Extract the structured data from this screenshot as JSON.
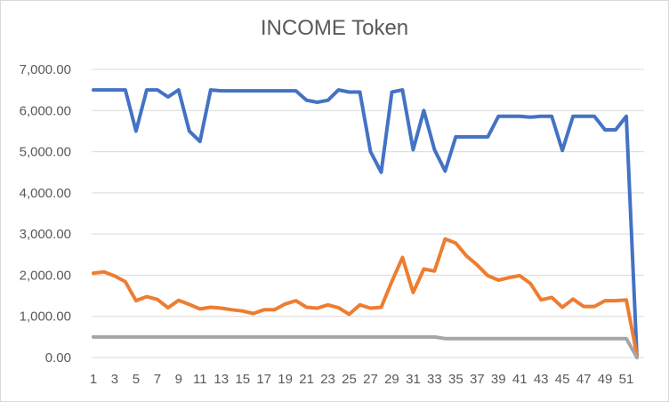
{
  "chart_data": {
    "type": "line",
    "title": "INCOME Token",
    "xlabel": "",
    "ylabel": "",
    "ylim": [
      0,
      7000
    ],
    "y_ticks": [
      "0.00",
      "1,000.00",
      "2,000.00",
      "3,000.00",
      "4,000.00",
      "5,000.00",
      "6,000.00",
      "7,000.00"
    ],
    "x": [
      1,
      2,
      3,
      4,
      5,
      6,
      7,
      8,
      9,
      10,
      11,
      12,
      13,
      14,
      15,
      16,
      17,
      18,
      19,
      20,
      21,
      22,
      23,
      24,
      25,
      26,
      27,
      28,
      29,
      30,
      31,
      32,
      33,
      34,
      35,
      36,
      37,
      38,
      39,
      40,
      41,
      42,
      43,
      44,
      45,
      46,
      47,
      48,
      49,
      50,
      51,
      52
    ],
    "x_tick_labels": [
      "1",
      "3",
      "5",
      "7",
      "9",
      "11",
      "13",
      "15",
      "17",
      "19",
      "21",
      "23",
      "25",
      "27",
      "29",
      "31",
      "33",
      "35",
      "37",
      "39",
      "41",
      "43",
      "45",
      "47",
      "49",
      "51"
    ],
    "grid": true,
    "series": [
      {
        "color": "#4472c4",
        "values": [
          6500,
          6500,
          6500,
          6500,
          5500,
          6500,
          6500,
          6330,
          6500,
          5500,
          5250,
          6500,
          6480,
          6480,
          6480,
          6480,
          6480,
          6480,
          6480,
          6480,
          6250,
          6200,
          6250,
          6500,
          6450,
          6450,
          5000,
          4500,
          6450,
          6500,
          5050,
          6000,
          5050,
          4530,
          5360,
          5360,
          5360,
          5360,
          5860,
          5860,
          5860,
          5840,
          5860,
          5860,
          5030,
          5860,
          5860,
          5860,
          5530,
          5530,
          5860,
          0
        ]
      },
      {
        "color": "#ed7d31",
        "values": [
          2050,
          2080,
          1980,
          1840,
          1380,
          1480,
          1410,
          1210,
          1390,
          1290,
          1180,
          1220,
          1200,
          1160,
          1130,
          1070,
          1160,
          1160,
          1300,
          1380,
          1220,
          1200,
          1280,
          1210,
          1050,
          1280,
          1200,
          1220,
          1850,
          2430,
          1580,
          2150,
          2100,
          2880,
          2780,
          2470,
          2250,
          1990,
          1880,
          1940,
          1990,
          1800,
          1400,
          1460,
          1220,
          1420,
          1240,
          1240,
          1380,
          1380,
          1400,
          50
        ]
      },
      {
        "color": "#a5a5a5",
        "values": [
          500,
          500,
          500,
          500,
          500,
          500,
          500,
          500,
          500,
          500,
          500,
          500,
          500,
          500,
          500,
          500,
          500,
          500,
          500,
          500,
          500,
          500,
          500,
          500,
          500,
          500,
          500,
          500,
          500,
          500,
          500,
          500,
          500,
          460,
          460,
          460,
          460,
          460,
          460,
          460,
          460,
          460,
          460,
          460,
          460,
          460,
          460,
          460,
          460,
          460,
          460,
          0
        ]
      }
    ]
  }
}
